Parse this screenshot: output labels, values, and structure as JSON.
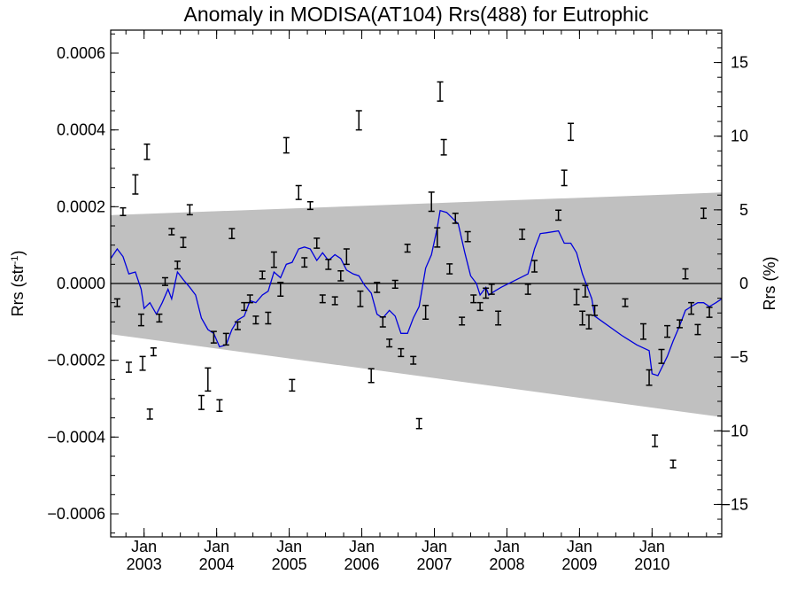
{
  "chart_data": {
    "type": "scatter",
    "title": "Anomaly in MODISA(AT104) Rrs(488) for Eutrophic",
    "ylabel": "Rrs (str",
    "ylabel_sup": "-1",
    "ylabel_close": ")",
    "y2label": "Rrs (%)",
    "xlim": [
      2002.54,
      2010.96
    ],
    "ylim": [
      -0.00066,
      0.00066
    ],
    "y2lim": [
      -17.2,
      17.2
    ],
    "yticks": [
      "0.0006",
      "0.0004",
      "0.0002",
      "0.0000",
      "−0.0002",
      "−0.0004",
      "−0.0006"
    ],
    "yticks_values": [
      0.0006,
      0.0004,
      0.0002,
      0.0,
      -0.0002,
      -0.0004,
      -0.0006
    ],
    "y2ticks": [
      "15",
      "10",
      "5",
      "0",
      "−5",
      "−10",
      "−15"
    ],
    "y2ticks_values": [
      15,
      10,
      5,
      0,
      -5,
      -10,
      -15
    ],
    "xticks_month": [
      "Jan",
      "Jan",
      "Jan",
      "Jan",
      "Jan",
      "Jan",
      "Jan",
      "Jan"
    ],
    "xticks_year": [
      "2003",
      "2004",
      "2005",
      "2006",
      "2007",
      "2008",
      "2009",
      "2010"
    ],
    "xticks_values": [
      2003,
      2004,
      2005,
      2006,
      2007,
      2008,
      2009,
      2010
    ],
    "zero_line": 0,
    "band": {
      "upper": [
        [
          2002.54,
          0.000178
        ],
        [
          2010.96,
          0.000237
        ]
      ],
      "lower": [
        [
          2002.54,
          -0.000132
        ],
        [
          2010.96,
          -0.000348
        ]
      ],
      "color": "#c0c0c0"
    },
    "points": [
      {
        "x": 2002.63,
        "y": -5e-05,
        "err": 1e-05
      },
      {
        "x": 2002.71,
        "y": 0.000187,
        "err": 1e-05
      },
      {
        "x": 2002.79,
        "y": -0.000218,
        "err": 1.3e-05
      },
      {
        "x": 2002.88,
        "y": 0.000258,
        "err": 2.5e-05
      },
      {
        "x": 2002.96,
        "y": -9.5e-05,
        "err": 1.5e-05
      },
      {
        "x": 2002.98,
        "y": -0.000208,
        "err": 1.8e-05
      },
      {
        "x": 2003.04,
        "y": 0.000343,
        "err": 2e-05
      },
      {
        "x": 2003.08,
        "y": -0.00034,
        "err": 1.3e-05
      },
      {
        "x": 2003.13,
        "y": -0.000178,
        "err": 1e-05
      },
      {
        "x": 2003.21,
        "y": -9e-05,
        "err": 1e-05
      },
      {
        "x": 2003.29,
        "y": 5e-06,
        "err": 1e-05
      },
      {
        "x": 2003.38,
        "y": 0.000135,
        "err": 8e-06
      },
      {
        "x": 2003.46,
        "y": 4.8e-05,
        "err": 1e-05
      },
      {
        "x": 2003.54,
        "y": 0.000107,
        "err": 1.3e-05
      },
      {
        "x": 2003.63,
        "y": 0.000192,
        "err": 1.3e-05
      },
      {
        "x": 2003.79,
        "y": -0.00031,
        "err": 1.8e-05
      },
      {
        "x": 2003.88,
        "y": -0.00025,
        "err": 3e-05
      },
      {
        "x": 2003.96,
        "y": -0.00014,
        "err": 1.5e-05
      },
      {
        "x": 2004.04,
        "y": -0.000318,
        "err": 1.5e-05
      },
      {
        "x": 2004.13,
        "y": -0.000145,
        "err": 1.5e-05
      },
      {
        "x": 2004.21,
        "y": 0.00013,
        "err": 1.3e-05
      },
      {
        "x": 2004.29,
        "y": -0.00011,
        "err": 1e-05
      },
      {
        "x": 2004.38,
        "y": -6e-05,
        "err": 1e-05
      },
      {
        "x": 2004.46,
        "y": -4e-05,
        "err": 1e-05
      },
      {
        "x": 2004.54,
        "y": -9.5e-05,
        "err": 1e-05
      },
      {
        "x": 2004.63,
        "y": 2.2e-05,
        "err": 1e-05
      },
      {
        "x": 2004.71,
        "y": -9e-05,
        "err": 1.5e-05
      },
      {
        "x": 2004.79,
        "y": 6.2e-05,
        "err": 2e-05
      },
      {
        "x": 2004.88,
        "y": -1.5e-05,
        "err": 1.8e-05
      },
      {
        "x": 2004.96,
        "y": 0.00036,
        "err": 2e-05
      },
      {
        "x": 2005.04,
        "y": -0.000265,
        "err": 1.5e-05
      },
      {
        "x": 2005.13,
        "y": 0.000237,
        "err": 1.8e-05
      },
      {
        "x": 2005.21,
        "y": 5.5e-05,
        "err": 1.2e-05
      },
      {
        "x": 2005.29,
        "y": 0.000203,
        "err": 1e-05
      },
      {
        "x": 2005.38,
        "y": 0.000105,
        "err": 1.3e-05
      },
      {
        "x": 2005.46,
        "y": -4e-05,
        "err": 1e-05
      },
      {
        "x": 2005.54,
        "y": 5e-05,
        "err": 1.3e-05
      },
      {
        "x": 2005.63,
        "y": -4.5e-05,
        "err": 1e-05
      },
      {
        "x": 2005.71,
        "y": 2e-05,
        "err": 1.3e-05
      },
      {
        "x": 2005.79,
        "y": 7e-05,
        "err": 2e-05
      },
      {
        "x": 2005.96,
        "y": 0.000425,
        "err": 2.5e-05
      },
      {
        "x": 2005.98,
        "y": -4e-05,
        "err": 2e-05
      },
      {
        "x": 2006.13,
        "y": -0.00024,
        "err": 1.8e-05
      },
      {
        "x": 2006.21,
        "y": -1e-05,
        "err": 1.3e-05
      },
      {
        "x": 2006.29,
        "y": -0.0001,
        "err": 1.3e-05
      },
      {
        "x": 2006.38,
        "y": -0.000155,
        "err": 1e-05
      },
      {
        "x": 2006.46,
        "y": -2e-06,
        "err": 1e-05
      },
      {
        "x": 2006.54,
        "y": -0.00018,
        "err": 1e-05
      },
      {
        "x": 2006.63,
        "y": 9.2e-05,
        "err": 1e-05
      },
      {
        "x": 2006.71,
        "y": -0.0002,
        "err": 1e-05
      },
      {
        "x": 2006.79,
        "y": -0.000365,
        "err": 1.3e-05
      },
      {
        "x": 2006.88,
        "y": -7.5e-05,
        "err": 1.8e-05
      },
      {
        "x": 2006.96,
        "y": 0.000213,
        "err": 2.5e-05
      },
      {
        "x": 2007.04,
        "y": 0.00012,
        "err": 2.5e-05
      },
      {
        "x": 2007.08,
        "y": 0.0005,
        "err": 2.5e-05
      },
      {
        "x": 2007.13,
        "y": 0.000355,
        "err": 2e-05
      },
      {
        "x": 2007.21,
        "y": 3.8e-05,
        "err": 1.3e-05
      },
      {
        "x": 2007.29,
        "y": 0.00017,
        "err": 1.3e-05
      },
      {
        "x": 2007.38,
        "y": -9.8e-05,
        "err": 1e-05
      },
      {
        "x": 2007.46,
        "y": 0.000122,
        "err": 1.3e-05
      },
      {
        "x": 2007.54,
        "y": -4e-05,
        "err": 1e-05
      },
      {
        "x": 2007.63,
        "y": -6e-05,
        "err": 1e-05
      },
      {
        "x": 2007.71,
        "y": -2.5e-05,
        "err": 1.3e-05
      },
      {
        "x": 2007.79,
        "y": -1.5e-05,
        "err": 1.3e-05
      },
      {
        "x": 2007.88,
        "y": -9e-05,
        "err": 1.8e-05
      },
      {
        "x": 2008.21,
        "y": 0.000128,
        "err": 1.3e-05
      },
      {
        "x": 2008.29,
        "y": -1.5e-05,
        "err": 1.3e-05
      },
      {
        "x": 2008.38,
        "y": 4.5e-05,
        "err": 1.5e-05
      },
      {
        "x": 2008.71,
        "y": 0.000178,
        "err": 1.3e-05
      },
      {
        "x": 2008.79,
        "y": 0.000275,
        "err": 2e-05
      },
      {
        "x": 2008.88,
        "y": 0.000395,
        "err": 2.2e-05
      },
      {
        "x": 2008.96,
        "y": -3.5e-05,
        "err": 2e-05
      },
      {
        "x": 2009.04,
        "y": -9e-05,
        "err": 1.8e-05
      },
      {
        "x": 2009.08,
        "y": -2e-05,
        "err": 1.5e-05
      },
      {
        "x": 2009.13,
        "y": -0.0001,
        "err": 1.8e-05
      },
      {
        "x": 2009.21,
        "y": -7e-05,
        "err": 1.3e-05
      },
      {
        "x": 2009.63,
        "y": -5e-05,
        "err": 1e-05
      },
      {
        "x": 2009.88,
        "y": -0.000125,
        "err": 2e-05
      },
      {
        "x": 2009.96,
        "y": -0.000245,
        "err": 2e-05
      },
      {
        "x": 2010.04,
        "y": -0.00041,
        "err": 1.5e-05
      },
      {
        "x": 2010.13,
        "y": -0.00019,
        "err": 1.8e-05
      },
      {
        "x": 2010.21,
        "y": -0.000125,
        "err": 1.5e-05
      },
      {
        "x": 2010.29,
        "y": -0.00047,
        "err": 1e-05
      },
      {
        "x": 2010.38,
        "y": -0.000105,
        "err": 1e-05
      },
      {
        "x": 2010.46,
        "y": 2.5e-05,
        "err": 1.3e-05
      },
      {
        "x": 2010.54,
        "y": -6.5e-05,
        "err": 1.5e-05
      },
      {
        "x": 2010.63,
        "y": -0.00012,
        "err": 1.3e-05
      },
      {
        "x": 2010.71,
        "y": 0.000183,
        "err": 1.3e-05
      },
      {
        "x": 2010.79,
        "y": -7.5e-05,
        "err": 1.3e-05
      }
    ],
    "smooth_line": {
      "color": "#0000dd",
      "points": [
        [
          2002.54,
          6.5e-05
        ],
        [
          2002.63,
          9e-05
        ],
        [
          2002.71,
          7e-05
        ],
        [
          2002.79,
          2.5e-05
        ],
        [
          2002.88,
          3e-05
        ],
        [
          2002.96,
          -1.5e-05
        ],
        [
          2003.0,
          -6.5e-05
        ],
        [
          2003.08,
          -5e-05
        ],
        [
          2003.17,
          -8e-05
        ],
        [
          2003.25,
          -5e-05
        ],
        [
          2003.33,
          -1.5e-05
        ],
        [
          2003.38,
          -4e-05
        ],
        [
          2003.46,
          3e-05
        ],
        [
          2003.54,
          1e-05
        ],
        [
          2003.63,
          -1e-05
        ],
        [
          2003.71,
          -3e-05
        ],
        [
          2003.79,
          -9e-05
        ],
        [
          2003.88,
          -0.00012
        ],
        [
          2003.96,
          -0.00013
        ],
        [
          2004.04,
          -0.000165
        ],
        [
          2004.13,
          -0.00016
        ],
        [
          2004.21,
          -0.00012
        ],
        [
          2004.29,
          -9.5e-05
        ],
        [
          2004.38,
          -8.5e-05
        ],
        [
          2004.46,
          -4.5e-05
        ],
        [
          2004.54,
          -5e-05
        ],
        [
          2004.63,
          -3e-05
        ],
        [
          2004.71,
          -2e-05
        ],
        [
          2004.79,
          3e-05
        ],
        [
          2004.88,
          1.5e-05
        ],
        [
          2004.96,
          5e-05
        ],
        [
          2005.04,
          5.5e-05
        ],
        [
          2005.13,
          9e-05
        ],
        [
          2005.21,
          9.5e-05
        ],
        [
          2005.29,
          9e-05
        ],
        [
          2005.38,
          6e-05
        ],
        [
          2005.46,
          8e-05
        ],
        [
          2005.54,
          6e-05
        ],
        [
          2005.63,
          7.5e-05
        ],
        [
          2005.71,
          6.5e-05
        ],
        [
          2005.79,
          3.5e-05
        ],
        [
          2005.88,
          2.5e-05
        ],
        [
          2005.96,
          2e-05
        ],
        [
          2006.04,
          -5e-06
        ],
        [
          2006.13,
          -2.5e-05
        ],
        [
          2006.21,
          -8e-05
        ],
        [
          2006.29,
          -9e-05
        ],
        [
          2006.38,
          -7e-05
        ],
        [
          2006.46,
          -8.5e-05
        ],
        [
          2006.54,
          -0.00013
        ],
        [
          2006.63,
          -0.00013
        ],
        [
          2006.71,
          -9e-05
        ],
        [
          2006.79,
          -6e-05
        ],
        [
          2006.88,
          4e-05
        ],
        [
          2006.96,
          7.5e-05
        ],
        [
          2007.04,
          0.000145
        ],
        [
          2007.08,
          0.00019
        ],
        [
          2007.17,
          0.000185
        ],
        [
          2007.25,
          0.00017
        ],
        [
          2007.33,
          0.000155
        ],
        [
          2007.42,
          8e-05
        ],
        [
          2007.5,
          2e-05
        ],
        [
          2007.58,
          0.0
        ],
        [
          2007.63,
          -3e-05
        ],
        [
          2007.71,
          -1e-05
        ],
        [
          2007.75,
          -3e-05
        ],
        [
          2007.83,
          -2e-05
        ],
        [
          2007.92,
          -1e-05
        ],
        [
          2008.29,
          2.5e-05
        ],
        [
          2008.38,
          9e-05
        ],
        [
          2008.46,
          0.00013
        ],
        [
          2008.54,
          0.000132
        ],
        [
          2008.71,
          0.000137
        ],
        [
          2008.79,
          0.000105
        ],
        [
          2008.88,
          0.000105
        ],
        [
          2008.96,
          8e-05
        ],
        [
          2009.04,
          2.5e-05
        ],
        [
          2009.13,
          -2e-05
        ],
        [
          2009.17,
          -4e-05
        ],
        [
          2009.21,
          -8.5e-05
        ],
        [
          2009.58,
          -0.000135
        ],
        [
          2009.79,
          -0.00016
        ],
        [
          2009.96,
          -0.000175
        ],
        [
          2010.0,
          -0.000235
        ],
        [
          2010.08,
          -0.00024
        ],
        [
          2010.21,
          -0.00019
        ],
        [
          2010.29,
          -0.00015
        ],
        [
          2010.38,
          -0.00011
        ],
        [
          2010.46,
          -7e-05
        ],
        [
          2010.54,
          -6e-05
        ],
        [
          2010.63,
          -5e-05
        ],
        [
          2010.71,
          -5e-05
        ],
        [
          2010.79,
          -6e-05
        ],
        [
          2010.88,
          -5e-05
        ],
        [
          2010.96,
          -4e-05
        ]
      ]
    }
  }
}
